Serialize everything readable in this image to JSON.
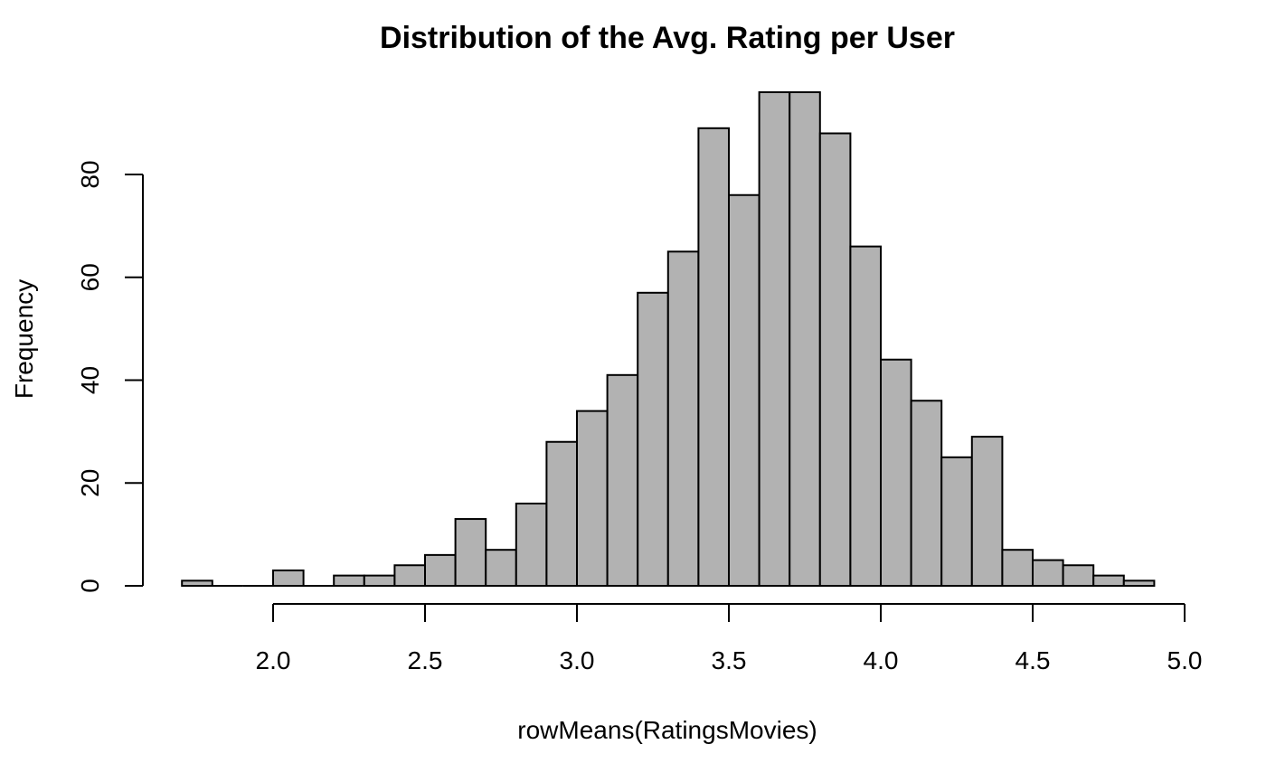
{
  "chart_data": {
    "type": "bar",
    "title": "Distribution of the Avg. Rating per User",
    "xlabel": "rowMeans(RatingsMovies)",
    "ylabel": "Frequency",
    "bar_color": "#b2b2b2",
    "border_color": "#000000",
    "bin_width": 0.1,
    "bin_starts": [
      1.7,
      1.8,
      1.9,
      2.0,
      2.1,
      2.2,
      2.3,
      2.4,
      2.5,
      2.6,
      2.7,
      2.8,
      2.9,
      3.0,
      3.1,
      3.2,
      3.3,
      3.4,
      3.5,
      3.6,
      3.7,
      3.8,
      3.9,
      4.0,
      4.1,
      4.2,
      4.3,
      4.4,
      4.5,
      4.6,
      4.7,
      4.8
    ],
    "values": [
      1,
      0,
      0,
      3,
      0,
      2,
      2,
      4,
      6,
      13,
      7,
      16,
      28,
      34,
      41,
      57,
      65,
      89,
      76,
      96,
      96,
      88,
      66,
      44,
      36,
      25,
      29,
      7,
      5,
      4,
      2,
      1
    ],
    "xlim": [
      1.7,
      4.9
    ],
    "ylim": [
      0,
      96
    ],
    "x_ticks": [
      "2.0",
      "2.5",
      "3.0",
      "3.5",
      "4.0",
      "4.5",
      "5.0"
    ],
    "y_ticks": [
      "0",
      "20",
      "40",
      "60",
      "80"
    ],
    "grid": false,
    "legend": "none"
  }
}
